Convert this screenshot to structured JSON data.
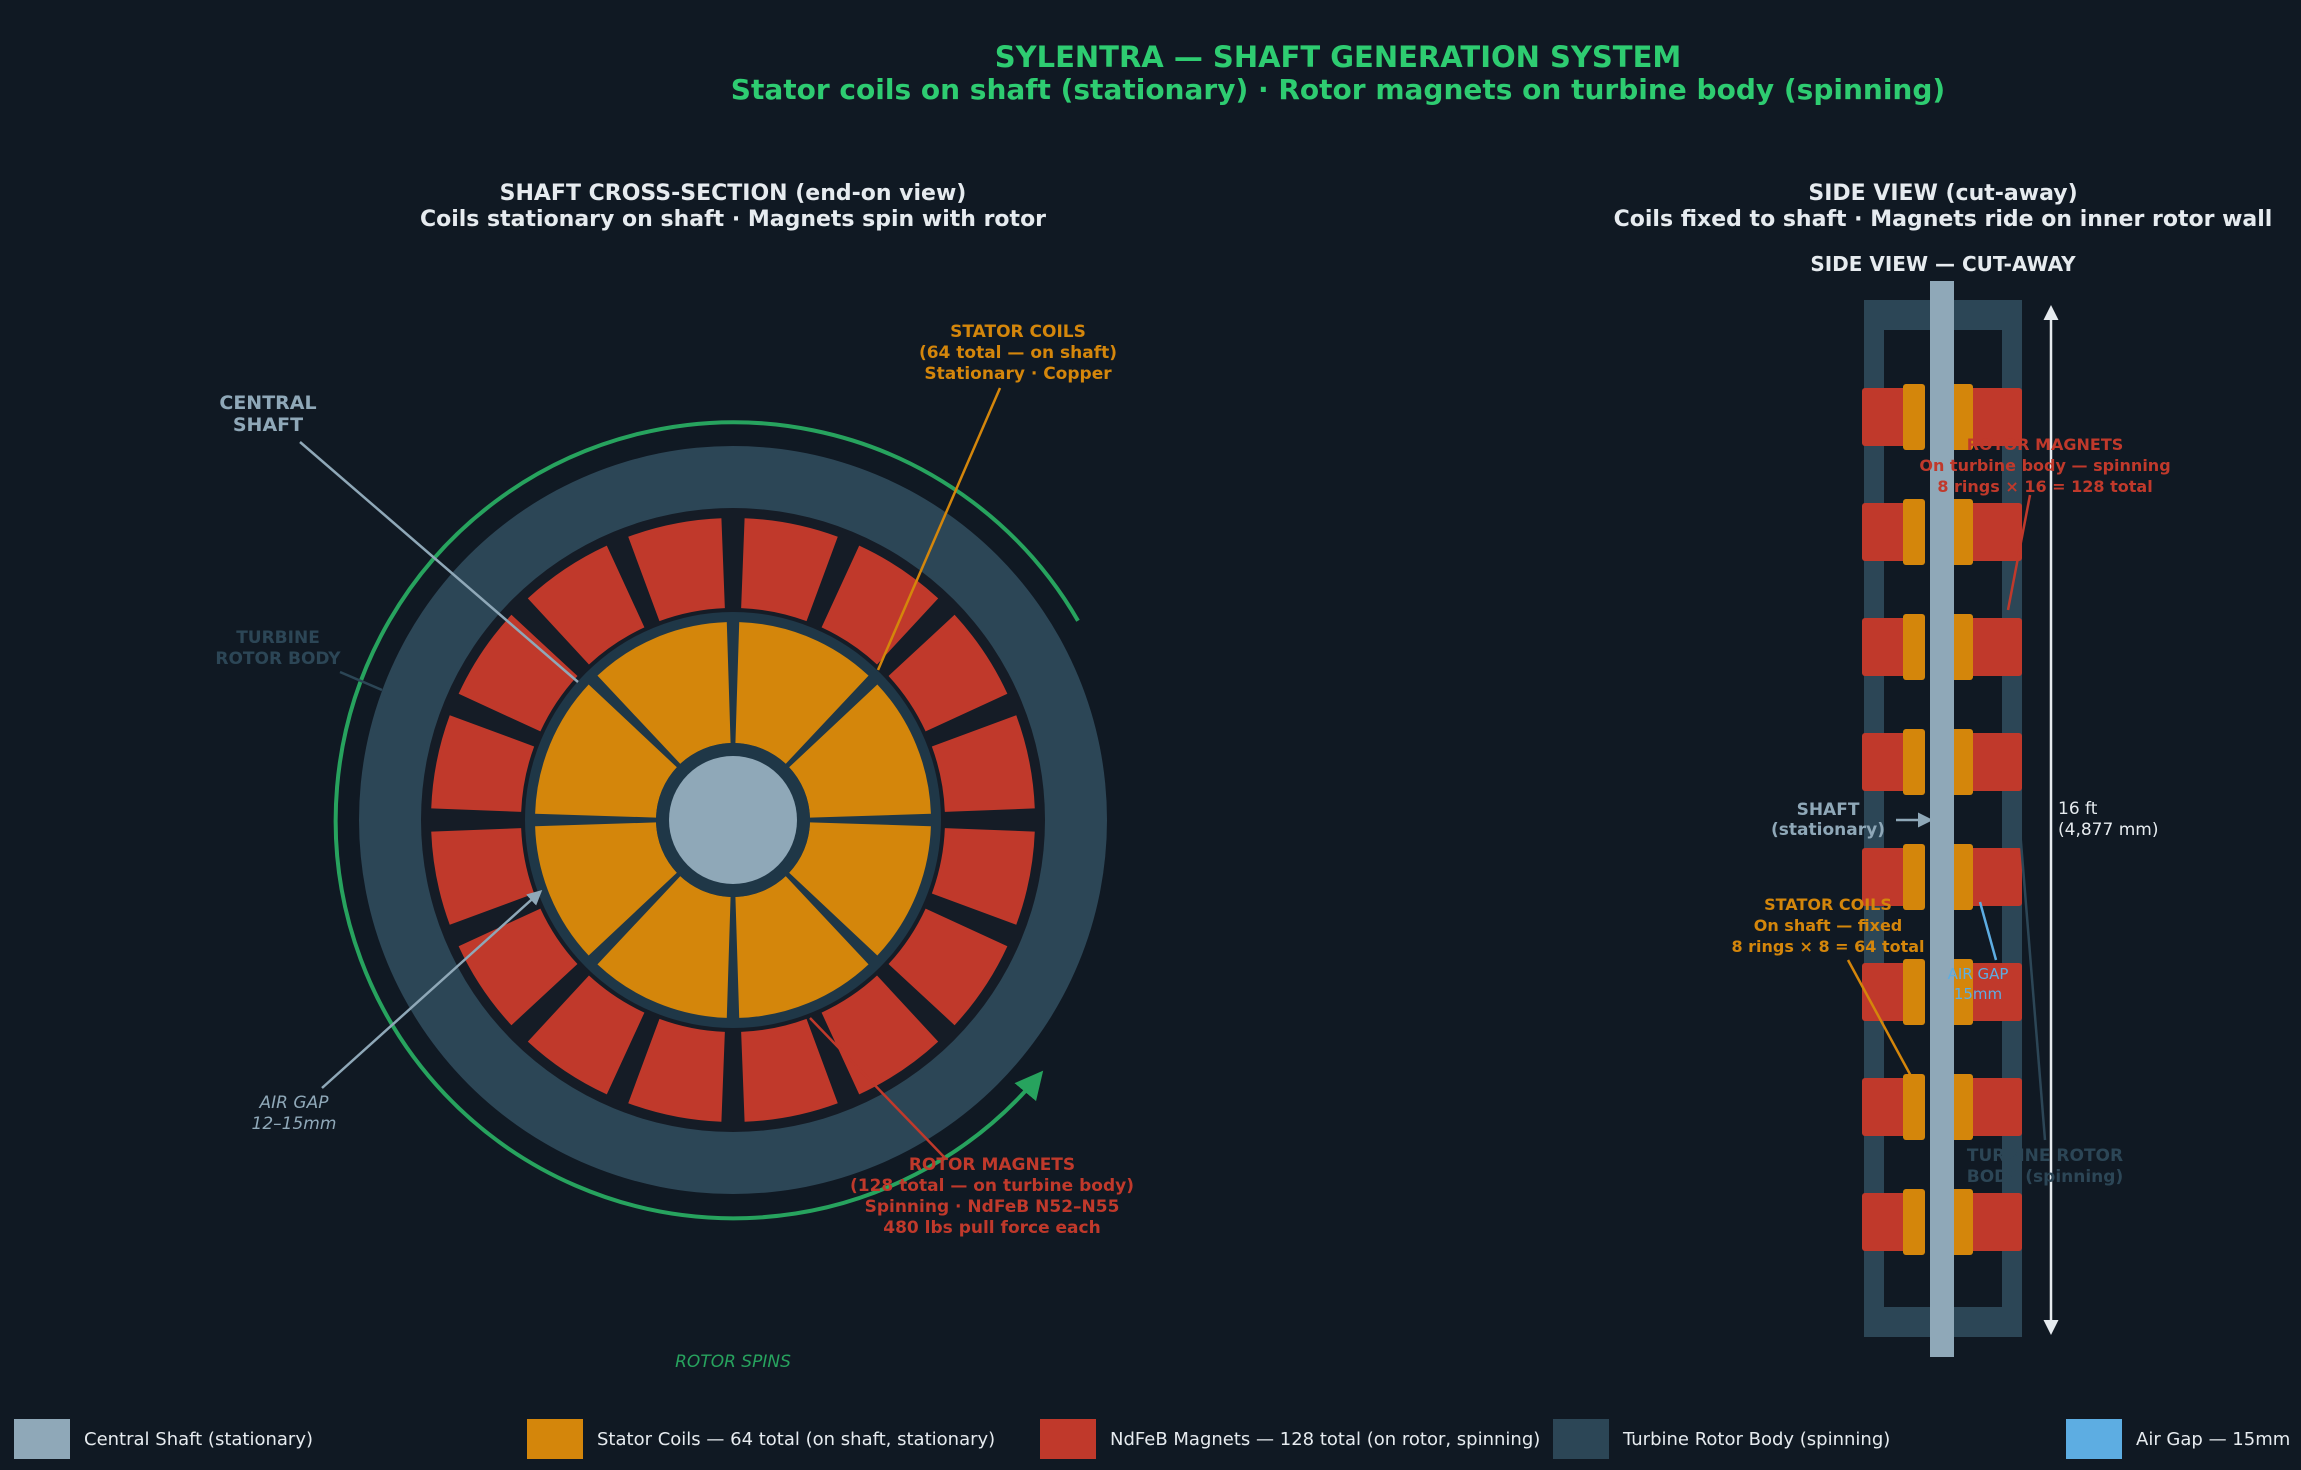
{
  "header": {
    "title": "SYLENTRA — SHAFT GENERATION SYSTEM",
    "subtitle": "Stator coils on shaft (stationary) · Rotor magnets on turbine body (spinning)"
  },
  "colors": {
    "title": "#2ecc71",
    "background": "#101923",
    "shaft": "#8fa8b8",
    "coil": "#d4860b",
    "magnet": "#c0392b",
    "rotor_body": "#2c4656",
    "air_gap": "#5dade2",
    "spin_arrow": "#27a35e"
  },
  "cross_section": {
    "title": "SHAFT CROSS-SECTION (end-on view)",
    "subtitle": "Coils stationary on shaft · Magnets spin with rotor",
    "labels": {
      "central_shaft": [
        "CENTRAL",
        "SHAFT"
      ],
      "turbine_rotor_body": [
        "TURBINE",
        "ROTOR BODY"
      ],
      "stator_coils": [
        "STATOR COILS",
        "(64 total — on shaft)",
        "Stationary · Copper"
      ],
      "rotor_magnets": [
        "ROTOR MAGNETS",
        "(128 total — on turbine body)",
        "Spinning · NdFeB N52–N55",
        "480 lbs pull force each"
      ],
      "air_gap": [
        "AIR GAP",
        "12–15mm"
      ],
      "rotor_spins": "ROTOR SPINS"
    },
    "coil_segments_drawn": 8,
    "magnet_segments_drawn": 16
  },
  "side_view": {
    "title": "SIDE VIEW (cut-away)",
    "subtitle": "Coils fixed to shaft · Magnets ride on inner rotor wall",
    "inner_title": "SIDE VIEW — CUT-AWAY",
    "labels": {
      "rotor_magnets": [
        "ROTOR MAGNETS",
        "On turbine body — spinning",
        "8 rings × 16 = 128 total"
      ],
      "shaft": [
        "SHAFT",
        "(stationary)"
      ],
      "stator_coils": [
        "STATOR COILS",
        "On shaft — fixed",
        "8 rings × 8 = 64 total"
      ],
      "air_gap": [
        "AIR GAP",
        "15mm"
      ],
      "turbine_rotor_body": [
        "TURBINE ROTOR",
        "BODY (spinning)"
      ],
      "height": [
        "16 ft",
        "(4,877 mm)"
      ]
    },
    "rings": 8
  },
  "legend": [
    {
      "label": "Central Shaft (stationary)",
      "color": "#8fa8b8"
    },
    {
      "label": "Stator Coils — 64 total (on shaft, stationary)",
      "color": "#d4860b"
    },
    {
      "label": "NdFeB Magnets — 128 total (on rotor, spinning)",
      "color": "#c0392b"
    },
    {
      "label": "Turbine Rotor Body (spinning)",
      "color": "#2c4656"
    },
    {
      "label": "Air Gap — 15mm",
      "color": "#5dade2"
    }
  ]
}
